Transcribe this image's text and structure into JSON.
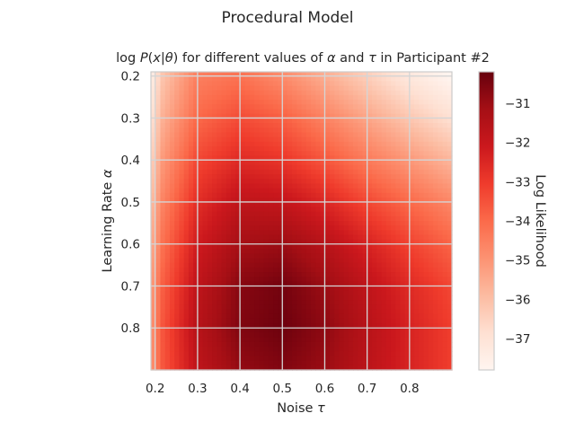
{
  "figure": {
    "suptitle": "Procedural Model"
  },
  "chart_data": {
    "type": "heatmap",
    "title": "log P(x|θ) for different values of α and τ in Participant #2",
    "title_parts": {
      "a": "log ",
      "b": "P",
      "c": "(",
      "d": "x",
      "e": "|",
      "f": "θ",
      "g": ") for different values of ",
      "h": "α",
      "i": " and ",
      "j": "τ",
      "k": " in Participant #2"
    },
    "xlabel": "Noise τ",
    "xlabel_parts": {
      "a": "Noise ",
      "b": "τ"
    },
    "ylabel": "Learning Rate α",
    "ylabel_parts": {
      "a": "Learning Rate ",
      "b": "α"
    },
    "xlim": [
      0.19,
      0.9
    ],
    "ylim": [
      0.9,
      0.19
    ],
    "x_ticks": [
      "0.2",
      "0.3",
      "0.4",
      "0.5",
      "0.6",
      "0.7",
      "0.8"
    ],
    "y_ticks": [
      "0.2",
      "0.3",
      "0.4",
      "0.5",
      "0.6",
      "0.7",
      "0.8"
    ],
    "x_tick_values": [
      0.2,
      0.3,
      0.4,
      0.5,
      0.6,
      0.7,
      0.8
    ],
    "y_tick_values": [
      0.2,
      0.3,
      0.4,
      0.5,
      0.6,
      0.7,
      0.8
    ],
    "colorbar": {
      "label": "Log Likelihood",
      "range": [
        -37.8,
        -30.2
      ],
      "ticks": [
        "−31",
        "−32",
        "−33",
        "−34",
        "−35",
        "−36",
        "−37"
      ],
      "tick_values": [
        -31,
        -32,
        -33,
        -34,
        -35,
        -36,
        -37
      ],
      "colormap": "Reds"
    },
    "grid": true,
    "surface": {
      "peak": {
        "tau": 0.45,
        "alpha": 0.72,
        "value": -30.2
      },
      "tau_values": [
        0.2,
        0.3,
        0.4,
        0.5,
        0.6,
        0.7,
        0.8,
        0.9
      ],
      "alpha_values": [
        0.2,
        0.3,
        0.4,
        0.5,
        0.6,
        0.7,
        0.8,
        0.9
      ],
      "note_values": [
        [
          -36.5,
          -34.5,
          -34.2,
          -34.8,
          -35.6,
          -36.4,
          -37.2,
          -37.8
        ],
        [
          -36.0,
          -34.0,
          -33.4,
          -33.8,
          -34.6,
          -35.4,
          -36.2,
          -36.9
        ],
        [
          -35.5,
          -33.3,
          -32.6,
          -32.9,
          -33.6,
          -34.4,
          -35.1,
          -35.8
        ],
        [
          -35.0,
          -32.7,
          -31.8,
          -31.9,
          -32.5,
          -33.3,
          -34.0,
          -34.7
        ],
        [
          -34.6,
          -32.2,
          -31.2,
          -31.0,
          -31.6,
          -32.4,
          -33.2,
          -33.9
        ],
        [
          -34.2,
          -31.8,
          -30.7,
          -30.4,
          -31.0,
          -31.8,
          -32.6,
          -33.3
        ],
        [
          -34.0,
          -31.6,
          -30.6,
          -30.3,
          -30.8,
          -31.6,
          -32.4,
          -33.1
        ],
        [
          -34.0,
          -31.8,
          -30.9,
          -30.6,
          -31.0,
          -31.7,
          -32.4,
          -33.1
        ]
      ]
    }
  }
}
